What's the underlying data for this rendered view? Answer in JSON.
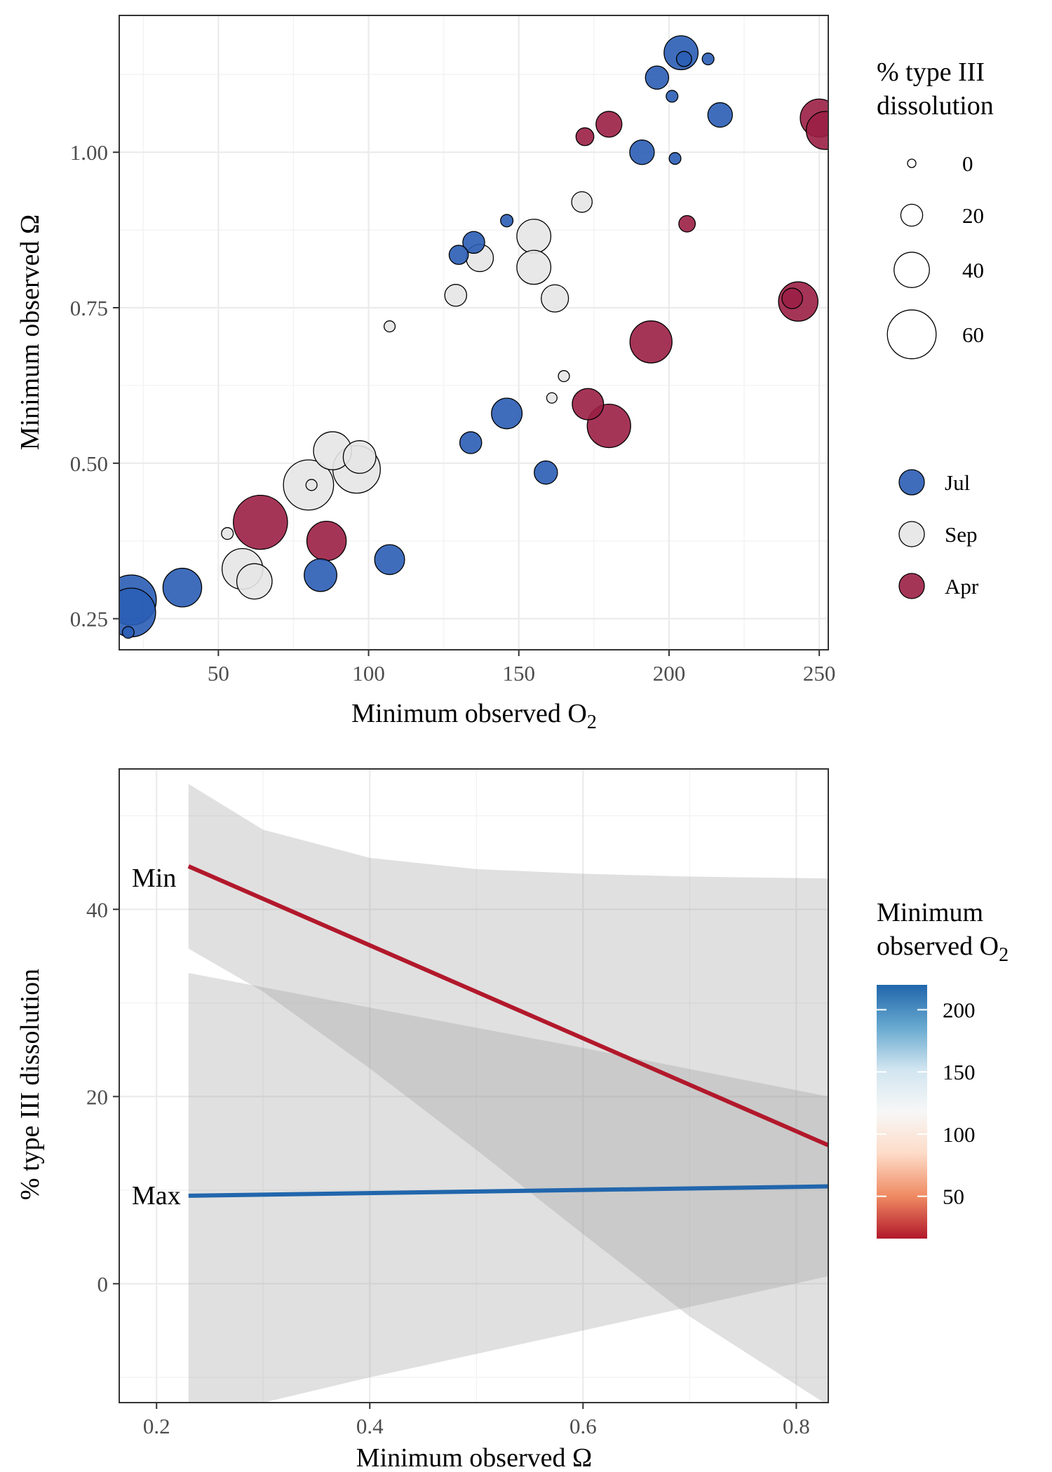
{
  "chart_data": [
    {
      "type": "scatter",
      "xlabel": "Minimum observed O",
      "xlabel_sub": "2",
      "ylabel": "Minimum observed Ω",
      "xlim": [
        17,
        253
      ],
      "ylim": [
        0.2,
        1.22
      ],
      "xticks": [
        50,
        100,
        150,
        200,
        250
      ],
      "xtick_labels": [
        "50",
        "100",
        "150",
        "200",
        "250"
      ],
      "yticks": [
        0.25,
        0.5,
        0.75,
        1.0
      ],
      "ytick_labels": [
        "0.25",
        "0.50",
        "0.75",
        "1.00"
      ],
      "grid": true,
      "size_legend": {
        "title_lines": [
          "% type III",
          "dissolution"
        ],
        "entries": [
          {
            "label": "0",
            "value": 0
          },
          {
            "label": "20",
            "value": 20
          },
          {
            "label": "40",
            "value": 40
          },
          {
            "label": "60",
            "value": 60
          }
        ]
      },
      "color_legend": {
        "entries": [
          {
            "label": "Jul",
            "color": "#2a5db5"
          },
          {
            "label": "Sep",
            "color": "#e6e6e6"
          },
          {
            "label": "Apr",
            "color": "#9b1f45"
          }
        ]
      },
      "series": [
        {
          "name": "Jul",
          "color": "#2a5db5",
          "points": [
            {
              "x": 204,
              "y": 1.16,
              "size": 38
            },
            {
              "x": 205,
              "y": 1.15,
              "size": 10
            },
            {
              "x": 213,
              "y": 1.15,
              "size": 5
            },
            {
              "x": 196,
              "y": 1.12,
              "size": 22
            },
            {
              "x": 201,
              "y": 1.09,
              "size": 5
            },
            {
              "x": 217,
              "y": 1.06,
              "size": 24
            },
            {
              "x": 191,
              "y": 1.0,
              "size": 24
            },
            {
              "x": 202,
              "y": 0.99,
              "size": 5
            },
            {
              "x": 146,
              "y": 0.89,
              "size": 6
            },
            {
              "x": 135,
              "y": 0.855,
              "size": 20
            },
            {
              "x": 130,
              "y": 0.835,
              "size": 16
            },
            {
              "x": 146,
              "y": 0.58,
              "size": 33
            },
            {
              "x": 134,
              "y": 0.533,
              "size": 20
            },
            {
              "x": 159,
              "y": 0.485,
              "size": 22
            },
            {
              "x": 107,
              "y": 0.345,
              "size": 32
            },
            {
              "x": 84,
              "y": 0.32,
              "size": 36
            },
            {
              "x": 38,
              "y": 0.3,
              "size": 45
            },
            {
              "x": 21,
              "y": 0.28,
              "size": 62
            },
            {
              "x": 21,
              "y": 0.26,
              "size": 60
            },
            {
              "x": 20,
              "y": 0.228,
              "size": 5
            }
          ]
        },
        {
          "name": "Sep",
          "color": "#e6e6e6",
          "points": [
            {
              "x": 171,
              "y": 0.92,
              "size": 18
            },
            {
              "x": 155,
              "y": 0.865,
              "size": 38
            },
            {
              "x": 137,
              "y": 0.83,
              "size": 28
            },
            {
              "x": 155,
              "y": 0.815,
              "size": 38
            },
            {
              "x": 129,
              "y": 0.77,
              "size": 20
            },
            {
              "x": 162,
              "y": 0.765,
              "size": 28
            },
            {
              "x": 107,
              "y": 0.72,
              "size": 4
            },
            {
              "x": 165,
              "y": 0.64,
              "size": 4
            },
            {
              "x": 161,
              "y": 0.605,
              "size": 3
            },
            {
              "x": 88,
              "y": 0.52,
              "size": 44
            },
            {
              "x": 97,
              "y": 0.51,
              "size": 36
            },
            {
              "x": 96,
              "y": 0.49,
              "size": 58
            },
            {
              "x": 80,
              "y": 0.465,
              "size": 62
            },
            {
              "x": 81,
              "y": 0.465,
              "size": 4
            },
            {
              "x": 53,
              "y": 0.387,
              "size": 5
            },
            {
              "x": 58,
              "y": 0.33,
              "size": 48
            },
            {
              "x": 62,
              "y": 0.31,
              "size": 40
            }
          ]
        },
        {
          "name": "Apr",
          "color": "#9b1f45",
          "points": [
            {
              "x": 250,
              "y": 1.055,
              "size": 44
            },
            {
              "x": 252,
              "y": 1.035,
              "size": 44
            },
            {
              "x": 180,
              "y": 1.045,
              "size": 26
            },
            {
              "x": 172,
              "y": 1.025,
              "size": 14
            },
            {
              "x": 206,
              "y": 0.885,
              "size": 12
            },
            {
              "x": 243,
              "y": 0.76,
              "size": 46
            },
            {
              "x": 241,
              "y": 0.765,
              "size": 18
            },
            {
              "x": 194,
              "y": 0.695,
              "size": 50
            },
            {
              "x": 173,
              "y": 0.595,
              "size": 34
            },
            {
              "x": 180,
              "y": 0.56,
              "size": 52
            },
            {
              "x": 64,
              "y": 0.405,
              "size": 68
            },
            {
              "x": 86,
              "y": 0.375,
              "size": 46
            }
          ]
        }
      ]
    },
    {
      "type": "line",
      "xlabel": "Minimum observed Ω",
      "ylabel": "% type III dissolution",
      "xlim": [
        0.165,
        0.83
      ],
      "ylim": [
        -12.7,
        55.0
      ],
      "xticks": [
        0.2,
        0.4,
        0.6,
        0.8
      ],
      "xtick_labels": [
        "0.2",
        "0.4",
        "0.6",
        "0.8"
      ],
      "yticks": [
        0,
        20,
        40
      ],
      "ytick_labels": [
        "0",
        "20",
        "40"
      ],
      "grid": true,
      "line_labels": {
        "min": "Min",
        "max": "Max"
      },
      "series": [
        {
          "color": "#b2182b",
          "line": {
            "x": [
              0.23,
              0.83
            ],
            "y": [
              44.6,
              14.8
            ]
          },
          "ribbon": {
            "x": [
              0.23,
              0.3,
              0.4,
              0.5,
              0.6,
              0.7,
              0.83
            ],
            "upper": [
              53.4,
              48.5,
              45.5,
              44.3,
              43.8,
              43.5,
              43.3
            ],
            "lower": [
              35.8,
              31.2,
              23.0,
              14.3,
              5.3,
              -3.5,
              -13.0
            ]
          }
        },
        {
          "color": "#2166ac",
          "line": {
            "x": [
              0.23,
              0.83
            ],
            "y": [
              9.4,
              10.4
            ]
          },
          "ribbon": {
            "x": [
              0.23,
              0.4,
              0.6,
              0.83
            ],
            "upper": [
              33.2,
              29.5,
              25.2,
              20.0
            ],
            "lower": [
              -14.6,
              -10.0,
              -5.0,
              0.8
            ]
          }
        }
      ],
      "colorbar": {
        "title_lines": [
          "Minimum",
          "observed O"
        ],
        "title_sub": "2",
        "range": [
          16,
          220
        ],
        "ticks": [
          50,
          100,
          150,
          200
        ],
        "tick_labels": [
          "50",
          "100",
          "150",
          "200"
        ],
        "colors": [
          "#b2182b",
          "#ef8a62",
          "#fddbc7",
          "#f7f7f7",
          "#d1e5f0",
          "#67a9cf",
          "#2166ac"
        ]
      }
    }
  ]
}
